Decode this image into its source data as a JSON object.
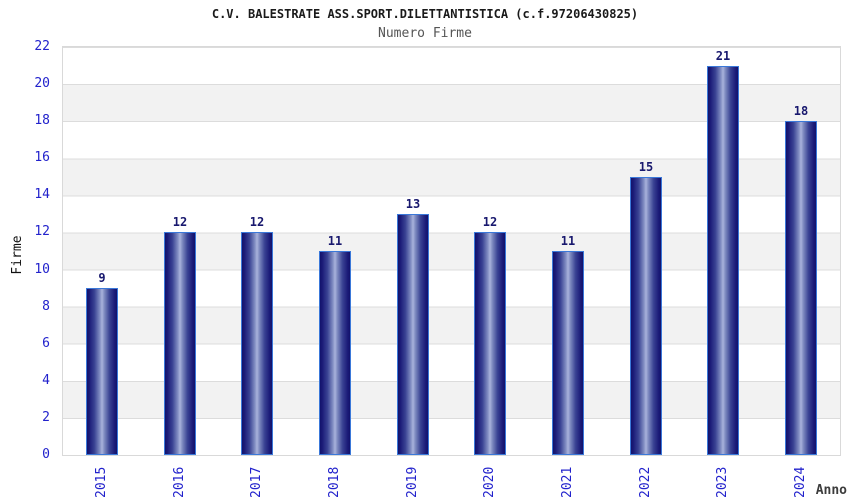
{
  "title": "C.V. BALESTRATE ASS.SPORT.DILETTANTISTICA (c.f.97206430825)",
  "chart_data": {
    "type": "bar",
    "title": "C.V. BALESTRATE ASS.SPORT.DILETTANTISTICA (c.f.97206430825)",
    "subtitle": "Numero Firme",
    "xlabel": "Anno",
    "ylabel": "Firme",
    "categories": [
      "2015",
      "2016",
      "2017",
      "2018",
      "2019",
      "2020",
      "2021",
      "2022",
      "2023",
      "2024"
    ],
    "values": [
      9,
      12,
      12,
      11,
      13,
      12,
      11,
      15,
      21,
      18
    ],
    "ylim": [
      0,
      22
    ],
    "ytick_step": 2,
    "grid": true,
    "band_stripes": true,
    "legend_position": "none"
  },
  "colors": {
    "title_color": "#1a1a1a",
    "subtitle_color": "#555555",
    "tick_label": "#2222cc",
    "value_label": "#18186e",
    "bar_border": "#3a78d9",
    "bar_dark": "#12126b",
    "bar_mid": "#3a4394",
    "bar_light": "#a9b2dc",
    "band_gray": "#f2f2f2",
    "grid_line": "#dcdcdc",
    "plot_border": "#d9d9d9",
    "axis_title_color": "#3c3c3c"
  }
}
